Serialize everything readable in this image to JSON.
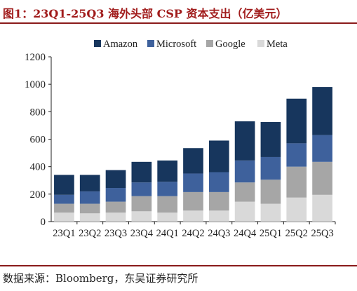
{
  "header": {
    "title": "图1：23Q1-25Q3 海外头部 CSP 资本支出（亿美元）"
  },
  "footer": {
    "source": "数据来源：Bloomberg，东吴证券研究所"
  },
  "colors": {
    "title": "#a11c1c",
    "rule": "#8a1a1a"
  },
  "chart_data": {
    "type": "bar",
    "stacked": true,
    "categories": [
      "23Q1",
      "23Q2",
      "23Q3",
      "23Q4",
      "24Q1",
      "24Q2",
      "24Q3",
      "24Q4",
      "25Q1",
      "25Q2",
      "25Q3"
    ],
    "series": [
      {
        "name": "Meta",
        "color": "#d9d9d9",
        "values": [
          65,
          60,
          65,
          75,
          65,
          80,
          80,
          145,
          130,
          175,
          195
        ]
      },
      {
        "name": "Google",
        "color": "#a6a6a6",
        "values": [
          65,
          70,
          80,
          110,
          120,
          135,
          135,
          140,
          175,
          225,
          240
        ]
      },
      {
        "name": "Microsoft",
        "color": "#3e619c",
        "values": [
          65,
          90,
          100,
          100,
          105,
          135,
          145,
          160,
          165,
          170,
          195
        ]
      },
      {
        "name": "Amazon",
        "color": "#17365d",
        "values": [
          145,
          120,
          130,
          150,
          155,
          185,
          230,
          285,
          255,
          325,
          350
        ]
      }
    ],
    "legend_order": [
      "Amazon",
      "Microsoft",
      "Google",
      "Meta"
    ],
    "legend_position": "top",
    "ylim": [
      0,
      1200
    ],
    "yticks": [
      0,
      200,
      400,
      600,
      800,
      1000,
      1200
    ],
    "grid": false,
    "title": "",
    "xlabel": "",
    "ylabel": ""
  }
}
